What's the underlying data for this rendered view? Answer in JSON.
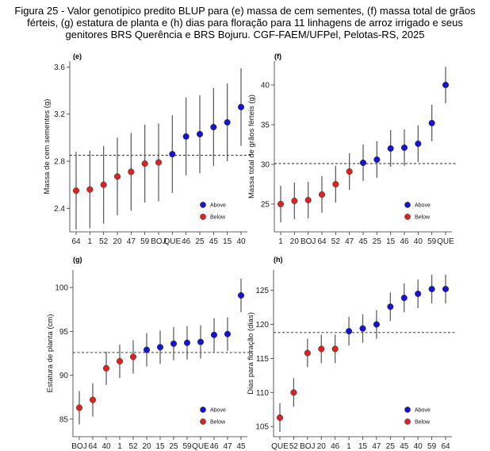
{
  "caption": {
    "line1": "Figura 25 - Valor genotípico predito BLUP para (e) massa de cem sementes, (f) massa total de grãos",
    "line2": "férteis, (g) estatura de planta e (h) dias para floração para 11 linhagens de arroz irrigado e seus",
    "line3": "genitores BRS Querência e BRS Bojuru. CGF-FAEM/UFPel, Pelotas-RS, 2025"
  },
  "colors": {
    "above": "#1414d2",
    "below": "#dd2222",
    "bar": "#555555",
    "axis": "#333333"
  },
  "legend": {
    "above": "Above",
    "below": "Below"
  },
  "chart_data": [
    {
      "type": "scatter",
      "panel": "(e)",
      "ylabel": "Massa de cem sementes (g)",
      "ylim": [
        2.2,
        3.65
      ],
      "yticks": [
        2.4,
        2.8,
        3.2,
        3.6
      ],
      "yticklabels": [
        "2.4",
        "2.8",
        "3.2",
        "3.6"
      ],
      "mean": 2.85,
      "categories": [
        "64",
        "1",
        "52",
        "20",
        "47",
        "59",
        "BOJ",
        "QUE",
        "46",
        "25",
        "45",
        "15",
        "40"
      ],
      "values": [
        2.55,
        2.56,
        2.6,
        2.67,
        2.71,
        2.78,
        2.79,
        2.86,
        3.01,
        3.03,
        3.09,
        3.13,
        3.26
      ],
      "lower": [
        2.22,
        2.23,
        2.27,
        2.34,
        2.38,
        2.45,
        2.46,
        2.53,
        2.68,
        2.7,
        2.76,
        2.8,
        2.93
      ],
      "upper": [
        2.88,
        2.89,
        2.93,
        3.0,
        3.04,
        3.11,
        3.12,
        3.19,
        3.34,
        3.36,
        3.42,
        3.46,
        3.59
      ],
      "group": [
        "below",
        "below",
        "below",
        "below",
        "below",
        "below",
        "below",
        "above",
        "above",
        "above",
        "above",
        "above",
        "above"
      ]
    },
    {
      "type": "scatter",
      "panel": "(f)",
      "ylabel": "Massa total de grãos férteis (g)",
      "ylim": [
        21.5,
        43
      ],
      "yticks": [
        25,
        30,
        35,
        40
      ],
      "yticklabels": [
        "25",
        "30",
        "35",
        "40"
      ],
      "mean": 30.1,
      "categories": [
        "1",
        "20",
        "BOJ",
        "64",
        "52",
        "47",
        "45",
        "25",
        "15",
        "46",
        "40",
        "59",
        "QUE"
      ],
      "values": [
        25.0,
        25.4,
        25.5,
        26.2,
        27.5,
        29.1,
        30.2,
        30.6,
        32.0,
        32.1,
        32.6,
        35.2,
        40.0
      ],
      "lower": [
        22.7,
        23.1,
        23.2,
        23.9,
        25.2,
        26.8,
        27.9,
        28.3,
        29.7,
        29.8,
        30.3,
        32.9,
        37.7
      ],
      "upper": [
        27.3,
        27.7,
        27.8,
        28.5,
        29.8,
        31.4,
        32.5,
        32.9,
        34.3,
        34.4,
        34.9,
        37.5,
        42.3
      ],
      "group": [
        "below",
        "below",
        "below",
        "below",
        "below",
        "below",
        "above",
        "above",
        "above",
        "above",
        "above",
        "above",
        "above"
      ]
    },
    {
      "type": "scatter",
      "panel": "(g)",
      "ylabel": "Estatura de planta (cm)",
      "ylim": [
        83,
        102
      ],
      "yticks": [
        85,
        90,
        95,
        100
      ],
      "yticklabels": [
        "85",
        "90",
        "95",
        "100"
      ],
      "mean": 92.6,
      "categories": [
        "BOJ",
        "64",
        "40",
        "1",
        "52",
        "20",
        "15",
        "25",
        "59",
        "QUE",
        "46",
        "47",
        "45"
      ],
      "values": [
        86.3,
        87.2,
        90.8,
        91.6,
        92.1,
        92.9,
        93.2,
        93.6,
        93.7,
        93.8,
        94.6,
        94.7,
        99.1
      ],
      "lower": [
        84.4,
        85.3,
        88.9,
        89.7,
        90.2,
        91.0,
        91.3,
        91.7,
        91.8,
        91.9,
        92.7,
        92.8,
        97.2
      ],
      "upper": [
        88.2,
        89.1,
        92.7,
        93.5,
        94.0,
        94.8,
        95.1,
        95.5,
        95.6,
        95.7,
        96.5,
        96.6,
        101.0
      ],
      "group": [
        "below",
        "below",
        "below",
        "below",
        "below",
        "above",
        "above",
        "above",
        "above",
        "above",
        "above",
        "above",
        "above"
      ]
    },
    {
      "type": "scatter",
      "panel": "(h)",
      "ylabel": "Dias para floração (dias)",
      "ylim": [
        103.5,
        128
      ],
      "yticks": [
        105,
        110,
        115,
        120,
        125
      ],
      "yticklabels": [
        "105",
        "110",
        "115",
        "120",
        "125"
      ],
      "mean": 118.8,
      "categories": [
        "QUE",
        "52",
        "BOJ",
        "20",
        "46",
        "1",
        "15",
        "47",
        "25",
        "45",
        "40",
        "59",
        "64"
      ],
      "values": [
        106.3,
        110.0,
        115.8,
        116.4,
        116.4,
        119.0,
        119.4,
        120.0,
        122.6,
        123.9,
        124.5,
        125.2,
        125.2
      ],
      "lower": [
        104.2,
        107.9,
        113.7,
        114.3,
        114.3,
        116.9,
        117.3,
        117.9,
        120.5,
        121.8,
        122.4,
        123.1,
        123.1
      ],
      "upper": [
        108.4,
        112.1,
        117.9,
        118.5,
        118.5,
        121.1,
        121.5,
        122.1,
        124.7,
        126.0,
        126.6,
        127.3,
        127.3
      ],
      "group": [
        "below",
        "below",
        "below",
        "below",
        "below",
        "above",
        "above",
        "above",
        "above",
        "above",
        "above",
        "above",
        "above"
      ]
    }
  ]
}
